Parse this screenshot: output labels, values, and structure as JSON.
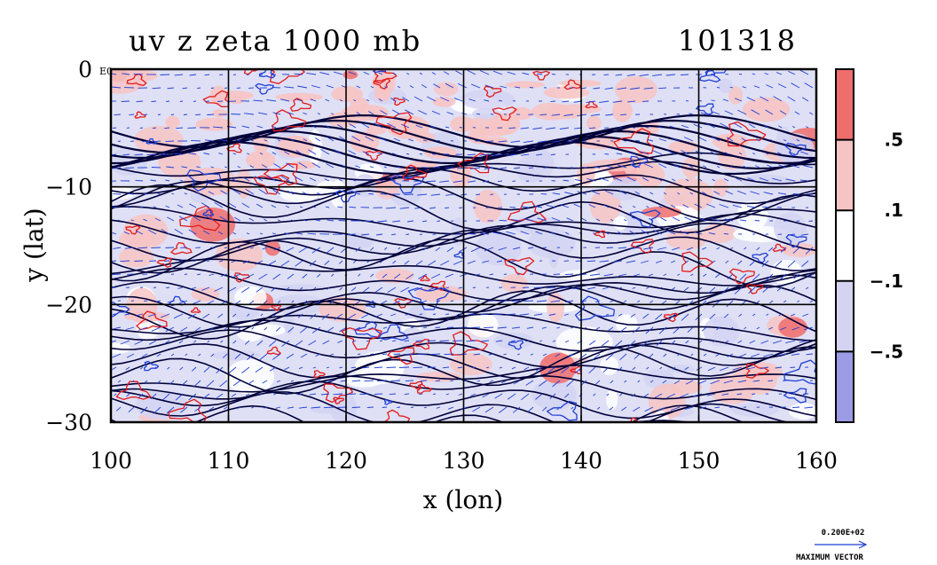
{
  "chart_data": {
    "type": "heatmap",
    "title": "uv z zeta 1000 mb",
    "run_id": "101318",
    "xlabel": "x (lon)",
    "ylabel": "y (lat)",
    "xlim": [
      100,
      160
    ],
    "ylim": [
      -30,
      0
    ],
    "x_ticks": [
      {
        "value": 100,
        "label": "100"
      },
      {
        "value": 110,
        "label": "110"
      },
      {
        "value": 120,
        "label": "120"
      },
      {
        "value": 130,
        "label": "130"
      },
      {
        "value": 140,
        "label": "140"
      },
      {
        "value": 150,
        "label": "150"
      },
      {
        "value": 160,
        "label": "160"
      }
    ],
    "y_ticks": [
      {
        "value": 0,
        "label": "0"
      },
      {
        "value": -10,
        "label": "−10"
      },
      {
        "value": -20,
        "label": "−20"
      },
      {
        "value": -30,
        "label": "−30"
      }
    ],
    "corner_label": "E0",
    "grid": true,
    "grid_x": [
      110,
      120,
      130,
      140,
      150
    ],
    "grid_y": [
      -10,
      -20
    ],
    "colorbar": {
      "placement": "right",
      "tick_labels": [
        ".5",
        ".1",
        "−.1",
        "−.5"
      ],
      "levels": [
        {
          "range": "> .5",
          "color": "#ee6d6d"
        },
        {
          "range": ".1 to .5",
          "color": "#f7c4c4"
        },
        {
          "range": "−.1 to .1",
          "color": "#ffffff"
        },
        {
          "range": "−.5 to −.1",
          "color": "#d4d4f2"
        },
        {
          "range": "< −.5",
          "color": "#9c9ce6"
        }
      ]
    },
    "vector_key": {
      "magnitude_label": "0.200E+02",
      "caption": "MAXIMUM VECTOR",
      "color": "#1f3fd6"
    },
    "colors": {
      "positive_contour": "#e31a1a",
      "negative_contour": "#1f3fd6",
      "height_contour": "#00003a",
      "vectors": "#1f3fd6"
    }
  }
}
